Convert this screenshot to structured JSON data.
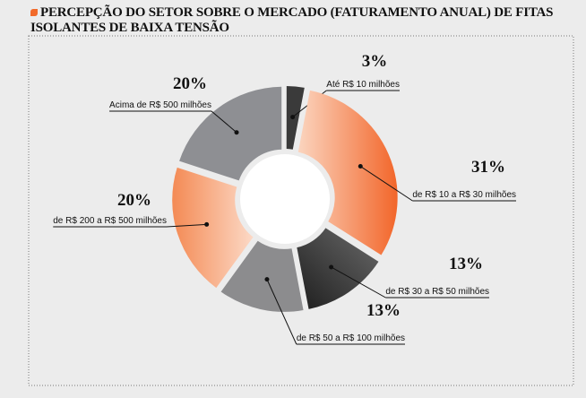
{
  "chart_data": {
    "type": "pie",
    "title": "PERCEPÇÃO DO SETOR SOBRE O MERCADO (FATURAMENTO ANUAL) DE FITAS ISOLANTES DE BAIXA TENSÃO",
    "categories": [
      "Até R$ 10 milhões",
      "de R$ 10 a R$ 30 milhões",
      "de R$ 30 a R$ 50 milhões",
      "de R$ 50 a R$ 100 milhões",
      "de R$ 200 a R$ 500 milhões",
      "Acima de R$ 500 milhões"
    ],
    "values": [
      3,
      31,
      13,
      13,
      20,
      20
    ],
    "value_labels": [
      "3%",
      "31%",
      "13%",
      "13%",
      "20%",
      "20%"
    ],
    "colors": [
      "#3a3a3a",
      "url(#g1)",
      "url(#g2)",
      "#8c8c8e",
      "url(#g4)",
      "#8e8f93"
    ]
  }
}
